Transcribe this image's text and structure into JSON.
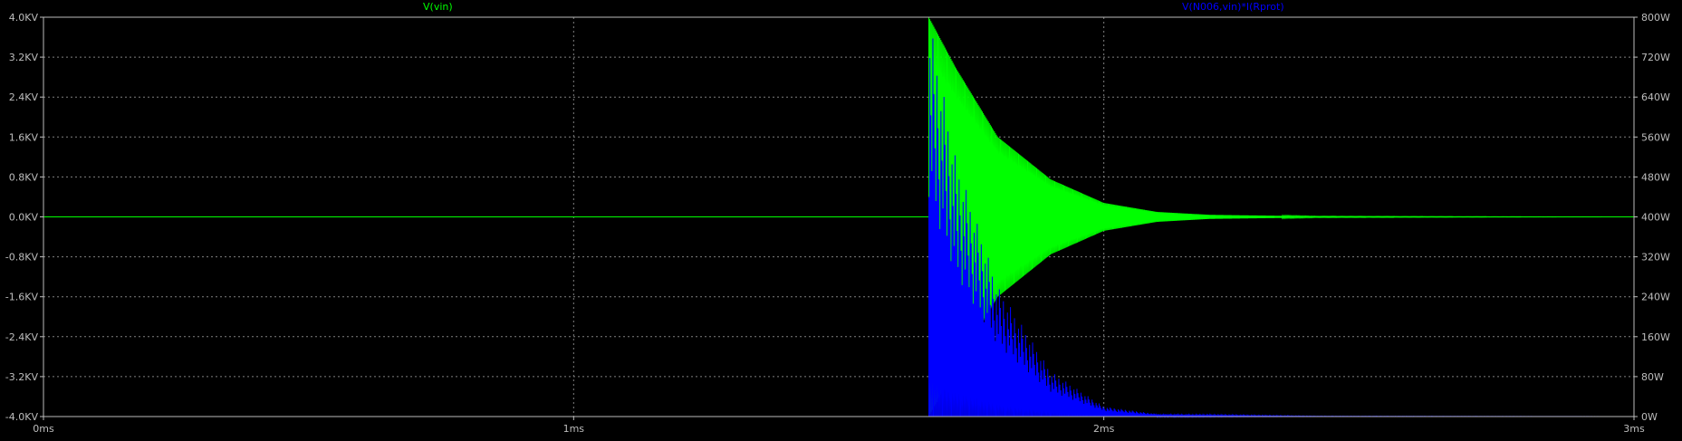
{
  "chart_data": {
    "type": "line",
    "title": "",
    "xlabel": "",
    "ylabel": "",
    "x_ticks": [
      "0ms",
      "1ms",
      "2ms",
      "3ms"
    ],
    "x_range_ms": [
      0,
      3
    ],
    "left_axis": {
      "ticks": [
        "4.0KV",
        "3.2KV",
        "2.4KV",
        "1.6KV",
        "0.8KV",
        "0.0KV",
        "-0.8KV",
        "-1.6KV",
        "-2.4KV",
        "-3.2KV",
        "-4.0KV"
      ],
      "range_kv": [
        -4.0,
        4.0
      ]
    },
    "right_axis": {
      "ticks": [
        "800W",
        "720W",
        "640W",
        "560W",
        "480W",
        "400W",
        "320W",
        "240W",
        "160W",
        "80W",
        "0W"
      ],
      "range_w": [
        0,
        800
      ]
    },
    "grid": true,
    "series": [
      {
        "name": "V(vin)",
        "axis": "left",
        "color": "#00ff00",
        "description_points": {
          "t_ms": [
            0,
            1.67,
            1.67,
            1.72,
            1.8,
            1.9,
            2.0,
            2.1,
            2.2,
            2.4,
            3.0
          ],
          "envelope_kv": [
            0,
            0,
            4.0,
            3.0,
            1.6,
            0.75,
            0.28,
            0.1,
            0.04,
            0.01,
            0.0
          ]
        }
      },
      {
        "name": "V(N006,vin)*I(Rprot)",
        "axis": "right",
        "color": "#0000ff",
        "description_points": {
          "t_ms": [
            0,
            1.67,
            1.67,
            1.72,
            1.8,
            1.9,
            2.0,
            2.1,
            2.4,
            3.0
          ],
          "envelope_w": [
            0,
            0,
            800,
            520,
            260,
            90,
            20,
            5,
            1,
            0
          ]
        }
      }
    ]
  },
  "colors": {
    "background": "#000000",
    "grid": "#808080",
    "axis": "#bdbdbd",
    "trace_vin": "#00ff00",
    "trace_power": "#0000ff"
  }
}
